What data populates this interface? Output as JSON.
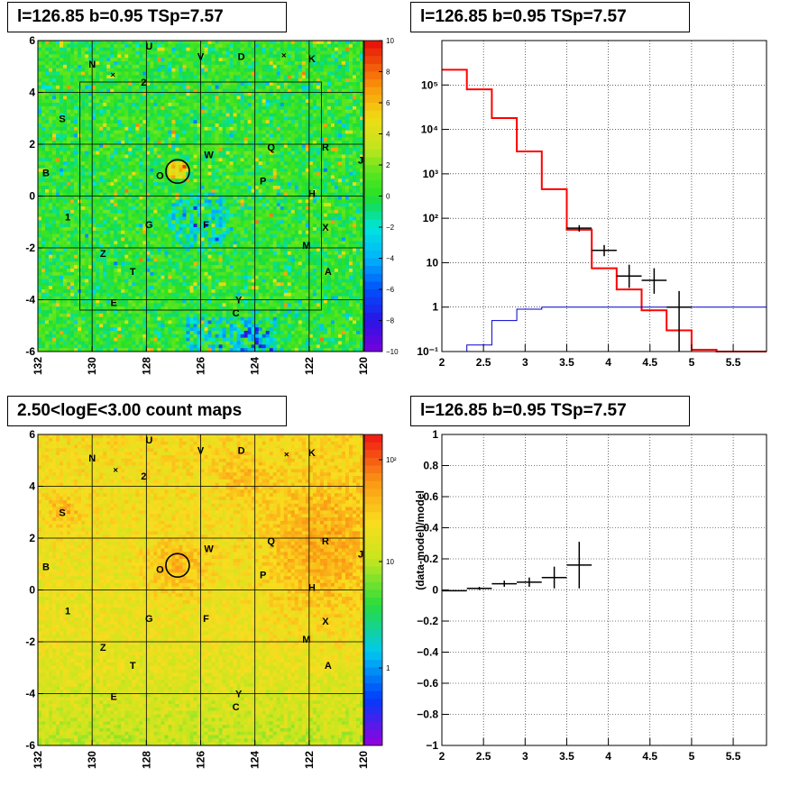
{
  "panels": {
    "tl_title": "l=126.85 b=0.95 TSp=7.57",
    "tr_title": "l=126.85 b=0.95 TSp=7.57",
    "bl_title": "2.50<logE<3.00 count maps",
    "br_title": "l=126.85 b=0.95 TSp=7.57"
  },
  "colors": {
    "data": "#000000",
    "model": "#ff0000",
    "bkg": "#0000cc"
  },
  "chart_data": [
    {
      "type": "heatmap",
      "title": "l=126.85 b=0.95 TSp=7.57",
      "xlim": [
        132,
        120
      ],
      "ylim": [
        -6,
        6
      ],
      "x_ticks": [
        "132",
        "130",
        "128",
        "126",
        "124",
        "122",
        "120"
      ],
      "y_ticks": [
        "-6",
        "-4",
        "-2",
        "0",
        "2",
        "4",
        "6"
      ],
      "colorbar": {
        "range": [
          -10,
          10
        ],
        "ticks": [
          "10",
          "8",
          "6",
          "4",
          "2",
          "0",
          "−2",
          "−4",
          "−6",
          "−8",
          "−10"
        ]
      },
      "source_labels": [
        {
          "t": "U",
          "x": 127.9,
          "y": 5.8
        },
        {
          "t": "V",
          "x": 126.0,
          "y": 5.4
        },
        {
          "t": "D",
          "x": 124.5,
          "y": 5.4
        },
        {
          "t": "K",
          "x": 121.9,
          "y": 5.3
        },
        {
          "t": "N",
          "x": 130.0,
          "y": 5.1
        },
        {
          "t": "2",
          "x": 128.1,
          "y": 4.4
        },
        {
          "t": "S",
          "x": 131.1,
          "y": 3.0
        },
        {
          "t": "Q",
          "x": 123.4,
          "y": 1.9
        },
        {
          "t": "R",
          "x": 121.4,
          "y": 1.9
        },
        {
          "t": "J",
          "x": 120.1,
          "y": 1.4
        },
        {
          "t": "W",
          "x": 125.7,
          "y": 1.6
        },
        {
          "t": "O",
          "x": 127.5,
          "y": 0.8
        },
        {
          "t": "B",
          "x": 131.7,
          "y": 0.9
        },
        {
          "t": "P",
          "x": 123.7,
          "y": 0.6
        },
        {
          "t": "H",
          "x": 121.9,
          "y": 0.1
        },
        {
          "t": "1",
          "x": 130.9,
          "y": -0.8
        },
        {
          "t": "G",
          "x": 127.9,
          "y": -1.1
        },
        {
          "t": "F",
          "x": 125.8,
          "y": -1.1
        },
        {
          "t": "X",
          "x": 121.4,
          "y": -1.2
        },
        {
          "t": "M",
          "x": 122.1,
          "y": -1.9
        },
        {
          "t": "Z",
          "x": 129.6,
          "y": -2.2
        },
        {
          "t": "T",
          "x": 128.5,
          "y": -2.9
        },
        {
          "t": "A",
          "x": 121.3,
          "y": -2.9
        },
        {
          "t": "E",
          "x": 129.2,
          "y": -4.1
        },
        {
          "t": "Y",
          "x": 124.6,
          "y": -4.0
        },
        {
          "t": "C",
          "x": 124.7,
          "y": -4.5
        }
      ]
    },
    {
      "type": "line",
      "title": "l=126.85 b=0.95 TSp=7.57",
      "xlim": [
        2,
        5.9
      ],
      "ylim": [
        0.1,
        1000000
      ],
      "log_y": true,
      "grid": true,
      "x_ticks": [
        "2",
        "2.5",
        "3",
        "3.5",
        "4",
        "4.5",
        "5",
        "5.5"
      ],
      "y_ticks": [
        "10⁻¹",
        "1",
        "10",
        "10²",
        "10³",
        "10⁴",
        "10⁵"
      ],
      "bin_edges": [
        2.0,
        2.3,
        2.6,
        2.9,
        3.2,
        3.5,
        3.8,
        4.1,
        4.4,
        4.7,
        5.0,
        5.3,
        5.6,
        5.9
      ],
      "series": [
        {
          "values": [
            220000,
            80000,
            18000,
            3200,
            450,
            55,
            7.5,
            2.5,
            0.85,
            0.3,
            0.11,
            0.1,
            0.1
          ]
        },
        {
          "values": [
            0.1,
            0.14,
            0.5,
            0.9,
            1,
            1,
            1,
            1,
            1,
            1,
            1,
            1,
            1
          ]
        }
      ],
      "points": [
        {
          "x": 3.65,
          "y": 60,
          "xerr": 0.15,
          "yerr_lo": 50,
          "yerr_hi": 70
        },
        {
          "x": 3.95,
          "y": 19,
          "xerr": 0.15,
          "yerr_lo": 14,
          "yerr_hi": 25
        },
        {
          "x": 4.25,
          "y": 5,
          "xerr": 0.15,
          "yerr_lo": 2.7,
          "yerr_hi": 9
        },
        {
          "x": 4.55,
          "y": 4,
          "xerr": 0.15,
          "yerr_lo": 2,
          "yerr_hi": 7.5
        },
        {
          "x": 4.85,
          "y": 1,
          "xerr": 0.15,
          "yerr_lo": 0.1,
          "yerr_hi": 2.3
        }
      ]
    },
    {
      "type": "heatmap",
      "title": "2.50<logE<3.00 count maps",
      "xlim": [
        132,
        120
      ],
      "ylim": [
        -6,
        6
      ],
      "x_ticks": [
        "132",
        "130",
        "128",
        "126",
        "124",
        "122",
        "120"
      ],
      "y_ticks": [
        "-6",
        "-4",
        "-2",
        "0",
        "2",
        "4",
        "6"
      ],
      "colorbar": {
        "scale": "log",
        "ticks": [
          "10²",
          "10",
          "1"
        ]
      },
      "source_labels": "same as first map"
    },
    {
      "type": "scatter",
      "title": "l=126.85 b=0.95 TSp=7.57",
      "ylabel": "(data-model)/model",
      "xlim": [
        2,
        5.9
      ],
      "ylim": [
        -1,
        1
      ],
      "grid": true,
      "x_ticks": [
        "2",
        "2.5",
        "3",
        "3.5",
        "4",
        "4.5",
        "5",
        "5.5"
      ],
      "y_ticks": [
        "−1",
        "−0.8",
        "−0.6",
        "−0.4",
        "−0.2",
        "0",
        "0.2",
        "0.4",
        "0.6",
        "0.8",
        "1"
      ],
      "points": [
        {
          "x": 2.15,
          "y": -0.005,
          "xerr": 0.15,
          "yerr": 0.004
        },
        {
          "x": 2.45,
          "y": 0.01,
          "xerr": 0.15,
          "yerr": 0.01
        },
        {
          "x": 2.75,
          "y": 0.04,
          "xerr": 0.15,
          "yerr": 0.02
        },
        {
          "x": 3.05,
          "y": 0.05,
          "xerr": 0.15,
          "yerr": 0.03
        },
        {
          "x": 3.35,
          "y": 0.08,
          "xerr": 0.15,
          "yerr": 0.07
        },
        {
          "x": 3.65,
          "y": 0.16,
          "xerr": 0.15,
          "yerr": 0.15
        }
      ]
    }
  ]
}
